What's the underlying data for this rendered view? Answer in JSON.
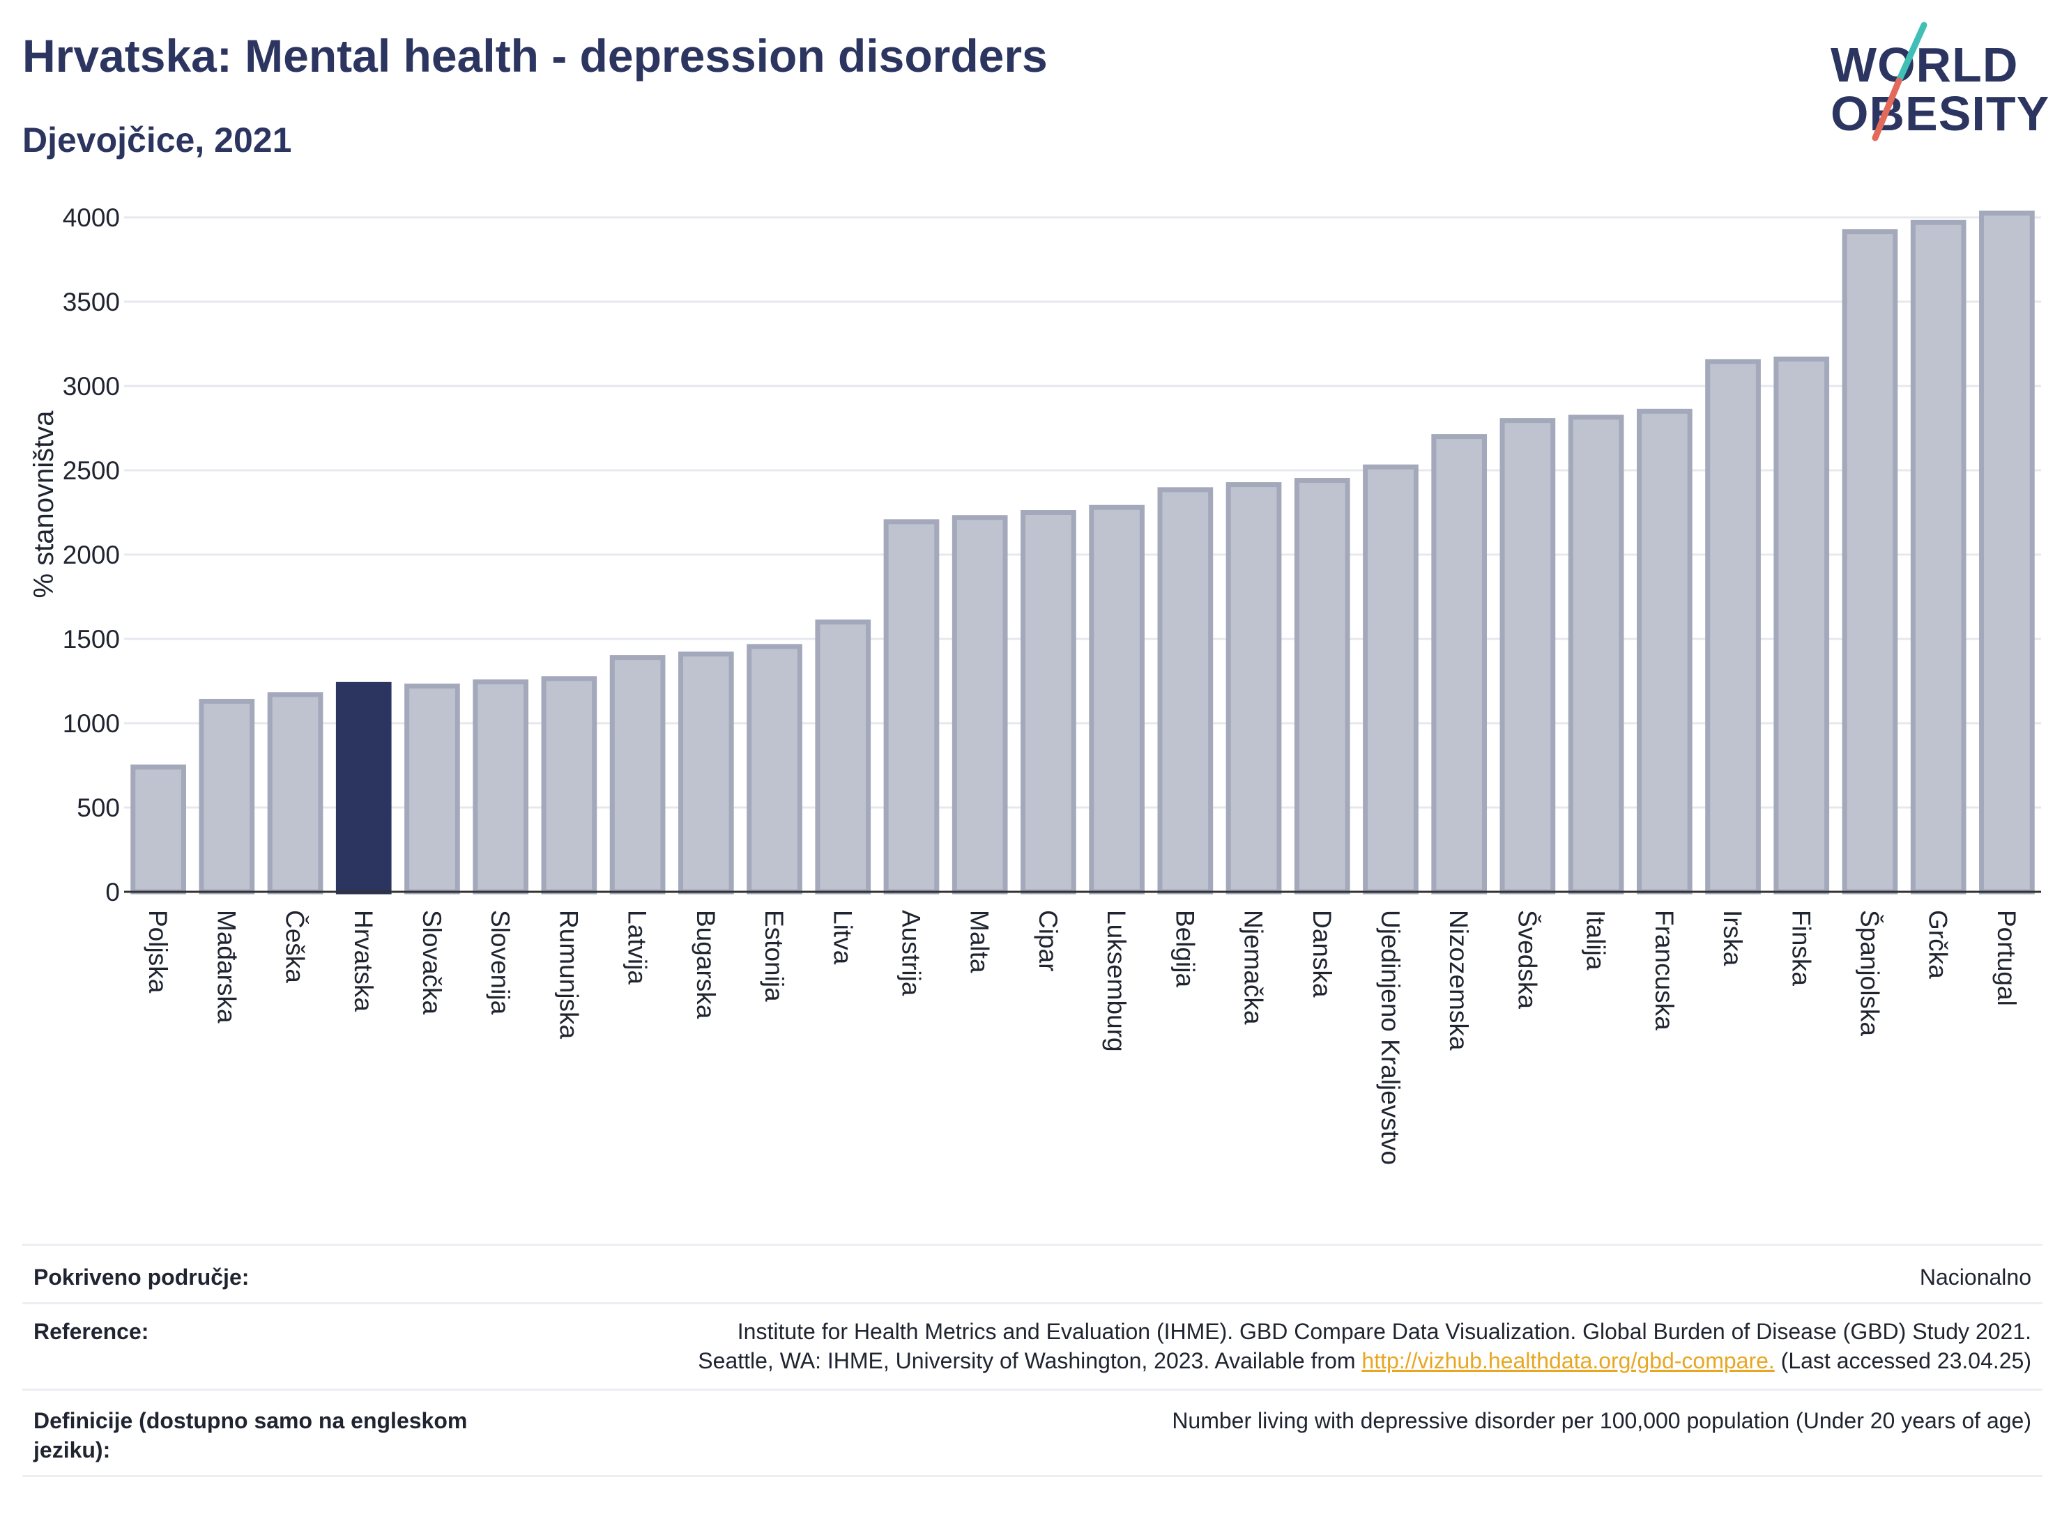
{
  "title": "Hrvatska: Mental health - depression disorders",
  "subtitle": "Djevojčice, 2021",
  "logo": {
    "line1": "WORLD",
    "line2": "OBESITY",
    "accent_teal": "#3fbfb5",
    "accent_red": "#e3695b"
  },
  "colors": {
    "highlight": "#2b3560",
    "bar": "#bfc2cf",
    "bar_stroke": "#a3a8bb",
    "grid": "#e6e8ee",
    "axis": "#333333"
  },
  "chart_data": {
    "type": "bar",
    "ylabel": "% stanovništva",
    "ylim": [
      0,
      4100
    ],
    "yticks": [
      0,
      500,
      1000,
      1500,
      2000,
      2500,
      3000,
      3500,
      4000
    ],
    "highlight": "Hrvatska",
    "categories": [
      "Poljska",
      "Mađarska",
      "Češka",
      "Hrvatska",
      "Slovačka",
      "Slovenija",
      "Rumunjska",
      "Latvija",
      "Bugarska",
      "Estonija",
      "Litva",
      "Austrija",
      "Malta",
      "Cipar",
      "Luksemburg",
      "Belgija",
      "Njemačka",
      "Danska",
      "Ujedinjeno Kraljevstvo",
      "Nizozemska",
      "Švedska",
      "Italija",
      "Francuska",
      "Irska",
      "Finska",
      "Španjolska",
      "Grčka",
      "Portugal"
    ],
    "values": [
      740,
      1130,
      1170,
      1230,
      1220,
      1245,
      1265,
      1390,
      1410,
      1455,
      1600,
      2195,
      2220,
      2250,
      2280,
      2385,
      2415,
      2440,
      2520,
      2700,
      2795,
      2815,
      2850,
      3145,
      3160,
      3915,
      3970,
      4025
    ],
    "grid": true
  },
  "meta": {
    "coverage_label": "Pokriveno područje:",
    "coverage_value": "Nacionalno",
    "reference_label": "Reference:",
    "reference_line1": "Institute for Health Metrics and Evaluation (IHME). GBD Compare Data Visualization. Global Burden of Disease (GBD) Study 2021.",
    "reference_line2_pre": "Seattle, WA: IHME, University of Washington, 2023. Available from ",
    "reference_link": "http://vizhub.healthdata.org/gbd-compare.",
    "reference_line2_post": " (Last accessed 23.04.25)",
    "definition_label": "Definicije (dostupno samo na engleskom jeziku):",
    "definition_value": "Number living with depressive disorder per 100,000 population (Under 20 years of age)"
  }
}
